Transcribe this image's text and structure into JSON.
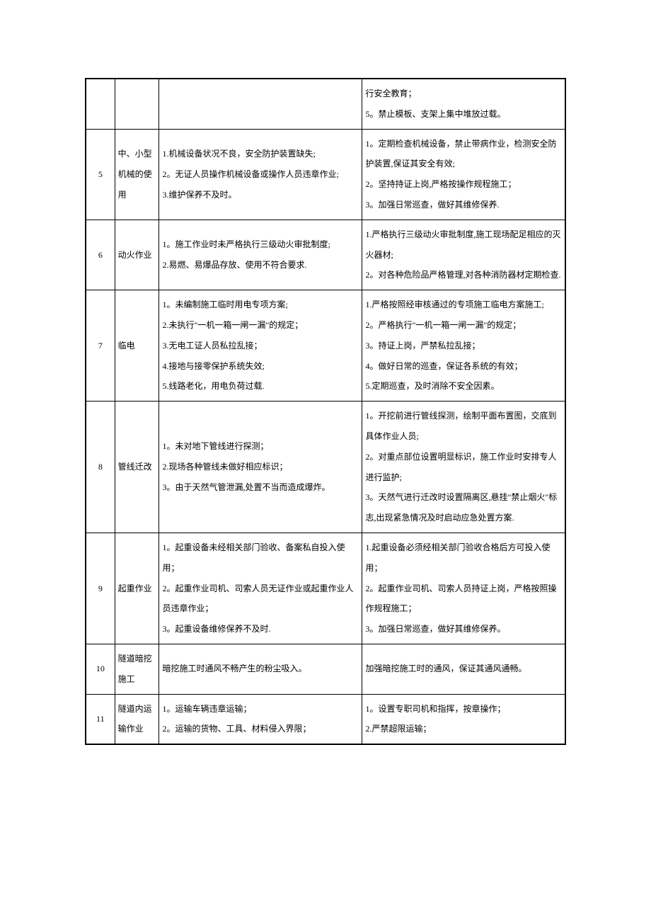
{
  "table": {
    "rows": [
      {
        "num": "",
        "name": "",
        "risk": "",
        "measure": "行安全教育；\n5。禁止模板、支架上集中堆放过载。"
      },
      {
        "num": "5",
        "name": "中、小型机械的使用",
        "risk": "1.机械设备状况不良，安全防护装置缺失;\n2。无证人员操作机械设备或操作人员违章作业;\n3.维护保养不及时。",
        "measure": "1。定期检查机械设备，禁止带病作业，检测安全防护装置,保证其安全有效;\n2。坚持持证上岗,严格按操作规程施工；\n3。加强日常巡查，做好其维修保养."
      },
      {
        "num": "6",
        "name": "动火作业",
        "risk": "1。施工作业时未严格执行三级动火审批制度;\n2.易燃、易爆品存放、使用不符合要求.",
        "measure": "1.严格执行三级动火审批制度,施工现场配足相应的灭火器材;\n2。对各种危险品严格管理,对各种消防器材定期检查."
      },
      {
        "num": "7",
        "name": "临电",
        "risk": "1。未编制施工临时用电专项方案;\n2.未执行\"一机一箱一闸一漏\"的规定；\n3.无电工证人员私拉乱接；\n4.接地与接零保护系统失效;\n5.线路老化，用电负荷过载.",
        "measure": "1.严格按照经审核通过的专项施工临电方案施工;\n2。严格执行\"一机一箱一闸一漏\"的规定；\n3。持证上岗，严禁私拉乱接；\n4。做好日常的巡查，保证各系统的有效；\n5.定期巡查，及时消除不安全因素。"
      },
      {
        "num": "8",
        "name": "管线迁改",
        "risk": "1。未对地下管线进行探测；\n2.现场各种管线未做好相应标识；\n3。由于天然气管泄漏,处置不当而造成爆炸。",
        "measure": "1。开挖前进行管线探测，绘制平面布置图，交底到具体作业人员;\n2。对重点部位设置明显标识，施工作业时安排专人进行监护;\n3。天然气进行迁改时设置隔离区,悬挂\"禁止烟火\"标志,出现紧急情况及时启动应急处置方案."
      },
      {
        "num": "9",
        "name": "起重作业",
        "risk": "1。起重设备未经相关部门验收、备案私自投入使用；\n2。起重作业司机、司索人员无证作业或起重作业人员违章作业；\n3。起重设备维修保养不及时.",
        "measure": "1.起重设备必须经相关部门验收合格后方可投入使用；\n2。起重作业司机、司索人员持证上岗，严格按照操作规程施工；\n3。加强日常巡查，做好其维修保养。"
      },
      {
        "num": "10",
        "name": "隧道暗挖施工",
        "risk": "暗挖施工时通风不畅产生的粉尘吸入。",
        "measure": "加强暗挖施工时的通风，保证其通风通畅。"
      },
      {
        "num": "11",
        "name": "隧道内运输作业",
        "risk": "1。运输车辆违章运输；\n2。运输的货物、工具、材料侵入界限；",
        "measure": "1。设置专职司机和指挥，按章操作；\n2.严禁超限运输；"
      }
    ]
  }
}
